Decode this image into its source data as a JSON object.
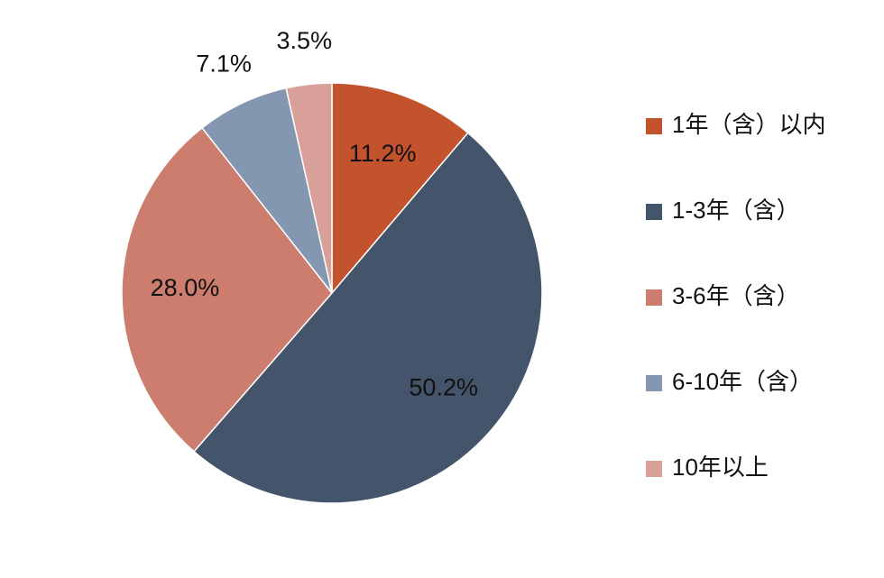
{
  "chart_data": {
    "type": "pie",
    "categories": [
      "1年（含）以内",
      "1-3年（含）",
      "3-6年（含）",
      "6-10年（含）",
      "10年以上"
    ],
    "values": [
      11.2,
      50.2,
      28.0,
      7.1,
      3.5
    ],
    "value_labels": [
      "11.2%",
      "50.2%",
      "28.0%",
      "7.1%",
      "3.5%"
    ],
    "colors": [
      "#c3532c",
      "#44546a",
      "#cd7d6d",
      "#8497b0",
      "#d9a09a"
    ],
    "legend": "right"
  }
}
